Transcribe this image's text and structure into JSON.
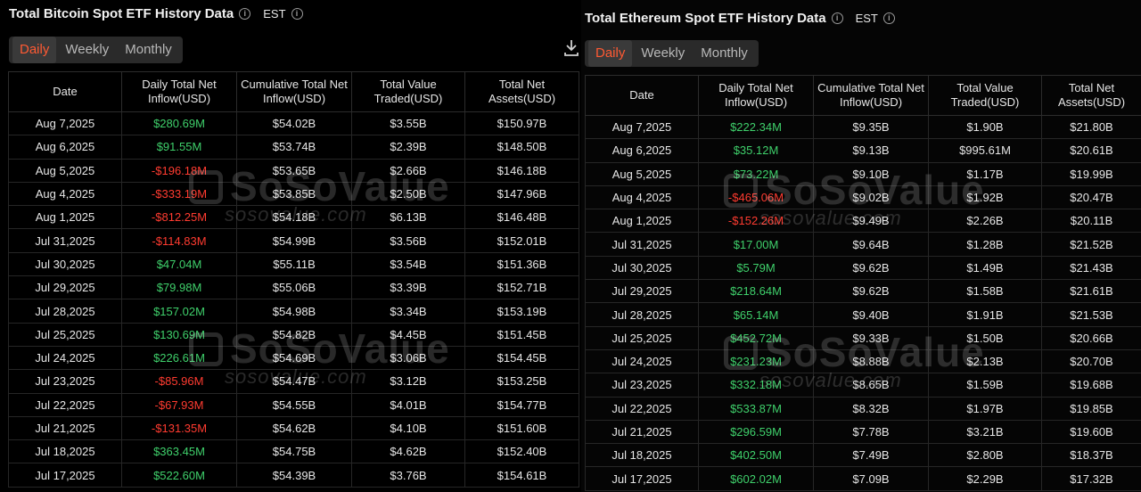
{
  "btc": {
    "title": "Total Bitcoin Spot ETF History Data",
    "timezone": "EST",
    "tabs": [
      "Daily",
      "Weekly",
      "Monthly"
    ],
    "columns": [
      "Date",
      "Daily Total Net Inflow(USD)",
      "Cumulative Total Net Inflow(USD)",
      "Total Value Traded(USD)",
      "Total Net Assets(USD)"
    ],
    "rows": [
      {
        "date": "Aug 7,2025",
        "inflow": "$280.69M",
        "cum": "$54.02B",
        "traded": "$3.55B",
        "assets": "$150.97B",
        "sign": "pos"
      },
      {
        "date": "Aug 6,2025",
        "inflow": "$91.55M",
        "cum": "$53.74B",
        "traded": "$2.39B",
        "assets": "$148.50B",
        "sign": "pos"
      },
      {
        "date": "Aug 5,2025",
        "inflow": "-$196.18M",
        "cum": "$53.65B",
        "traded": "$2.66B",
        "assets": "$146.18B",
        "sign": "neg"
      },
      {
        "date": "Aug 4,2025",
        "inflow": "-$333.19M",
        "cum": "$53.85B",
        "traded": "$2.50B",
        "assets": "$147.96B",
        "sign": "neg"
      },
      {
        "date": "Aug 1,2025",
        "inflow": "-$812.25M",
        "cum": "$54.18B",
        "traded": "$6.13B",
        "assets": "$146.48B",
        "sign": "neg"
      },
      {
        "date": "Jul 31,2025",
        "inflow": "-$114.83M",
        "cum": "$54.99B",
        "traded": "$3.56B",
        "assets": "$152.01B",
        "sign": "neg"
      },
      {
        "date": "Jul 30,2025",
        "inflow": "$47.04M",
        "cum": "$55.11B",
        "traded": "$3.54B",
        "assets": "$151.36B",
        "sign": "pos"
      },
      {
        "date": "Jul 29,2025",
        "inflow": "$79.98M",
        "cum": "$55.06B",
        "traded": "$3.39B",
        "assets": "$152.71B",
        "sign": "pos"
      },
      {
        "date": "Jul 28,2025",
        "inflow": "$157.02M",
        "cum": "$54.98B",
        "traded": "$3.34B",
        "assets": "$153.19B",
        "sign": "pos"
      },
      {
        "date": "Jul 25,2025",
        "inflow": "$130.69M",
        "cum": "$54.82B",
        "traded": "$4.45B",
        "assets": "$151.45B",
        "sign": "pos"
      },
      {
        "date": "Jul 24,2025",
        "inflow": "$226.61M",
        "cum": "$54.69B",
        "traded": "$3.06B",
        "assets": "$154.45B",
        "sign": "pos"
      },
      {
        "date": "Jul 23,2025",
        "inflow": "-$85.96M",
        "cum": "$54.47B",
        "traded": "$3.12B",
        "assets": "$153.25B",
        "sign": "neg"
      },
      {
        "date": "Jul 22,2025",
        "inflow": "-$67.93M",
        "cum": "$54.55B",
        "traded": "$4.01B",
        "assets": "$154.77B",
        "sign": "neg"
      },
      {
        "date": "Jul 21,2025",
        "inflow": "-$131.35M",
        "cum": "$54.62B",
        "traded": "$4.10B",
        "assets": "$151.60B",
        "sign": "neg"
      },
      {
        "date": "Jul 18,2025",
        "inflow": "$363.45M",
        "cum": "$54.75B",
        "traded": "$4.62B",
        "assets": "$152.40B",
        "sign": "pos"
      },
      {
        "date": "Jul 17,2025",
        "inflow": "$522.60M",
        "cum": "$54.39B",
        "traded": "$3.76B",
        "assets": "$154.61B",
        "sign": "pos"
      }
    ]
  },
  "eth": {
    "title": "Total Ethereum Spot ETF History Data",
    "timezone": "EST",
    "tabs": [
      "Daily",
      "Weekly",
      "Monthly"
    ],
    "columns": [
      "Date",
      "Daily Total Net Inflow(USD)",
      "Cumulative Total Net Inflow(USD)",
      "Total Value Traded(USD)",
      "Total Net Assets(USD)"
    ],
    "rows": [
      {
        "date": "Aug 7,2025",
        "inflow": "$222.34M",
        "cum": "$9.35B",
        "traded": "$1.90B",
        "assets": "$21.80B",
        "sign": "pos"
      },
      {
        "date": "Aug 6,2025",
        "inflow": "$35.12M",
        "cum": "$9.13B",
        "traded": "$995.61M",
        "assets": "$20.61B",
        "sign": "pos"
      },
      {
        "date": "Aug 5,2025",
        "inflow": "$73.22M",
        "cum": "$9.10B",
        "traded": "$1.17B",
        "assets": "$19.99B",
        "sign": "pos"
      },
      {
        "date": "Aug 4,2025",
        "inflow": "-$465.06M",
        "cum": "$9.02B",
        "traded": "$1.92B",
        "assets": "$20.47B",
        "sign": "neg"
      },
      {
        "date": "Aug 1,2025",
        "inflow": "-$152.26M",
        "cum": "$9.49B",
        "traded": "$2.26B",
        "assets": "$20.11B",
        "sign": "neg"
      },
      {
        "date": "Jul 31,2025",
        "inflow": "$17.00M",
        "cum": "$9.64B",
        "traded": "$1.28B",
        "assets": "$21.52B",
        "sign": "pos"
      },
      {
        "date": "Jul 30,2025",
        "inflow": "$5.79M",
        "cum": "$9.62B",
        "traded": "$1.49B",
        "assets": "$21.43B",
        "sign": "pos"
      },
      {
        "date": "Jul 29,2025",
        "inflow": "$218.64M",
        "cum": "$9.62B",
        "traded": "$1.58B",
        "assets": "$21.61B",
        "sign": "pos"
      },
      {
        "date": "Jul 28,2025",
        "inflow": "$65.14M",
        "cum": "$9.40B",
        "traded": "$1.91B",
        "assets": "$21.53B",
        "sign": "pos"
      },
      {
        "date": "Jul 25,2025",
        "inflow": "$452.72M",
        "cum": "$9.33B",
        "traded": "$1.50B",
        "assets": "$20.66B",
        "sign": "pos"
      },
      {
        "date": "Jul 24,2025",
        "inflow": "$231.23M",
        "cum": "$8.88B",
        "traded": "$2.13B",
        "assets": "$20.70B",
        "sign": "pos"
      },
      {
        "date": "Jul 23,2025",
        "inflow": "$332.18M",
        "cum": "$8.65B",
        "traded": "$1.59B",
        "assets": "$19.68B",
        "sign": "pos"
      },
      {
        "date": "Jul 22,2025",
        "inflow": "$533.87M",
        "cum": "$8.32B",
        "traded": "$1.97B",
        "assets": "$19.85B",
        "sign": "pos"
      },
      {
        "date": "Jul 21,2025",
        "inflow": "$296.59M",
        "cum": "$7.78B",
        "traded": "$3.21B",
        "assets": "$19.60B",
        "sign": "pos"
      },
      {
        "date": "Jul 18,2025",
        "inflow": "$402.50M",
        "cum": "$7.49B",
        "traded": "$2.80B",
        "assets": "$18.37B",
        "sign": "pos"
      },
      {
        "date": "Jul 17,2025",
        "inflow": "$602.02M",
        "cum": "$7.09B",
        "traded": "$2.29B",
        "assets": "$17.32B",
        "sign": "pos"
      }
    ]
  },
  "watermark": {
    "brand": "SoSoValue",
    "site": "sosovalue.com"
  },
  "colors": {
    "positive": "#3fd06b",
    "negative": "#ff3b30",
    "active_tab": "#ff5a33"
  }
}
